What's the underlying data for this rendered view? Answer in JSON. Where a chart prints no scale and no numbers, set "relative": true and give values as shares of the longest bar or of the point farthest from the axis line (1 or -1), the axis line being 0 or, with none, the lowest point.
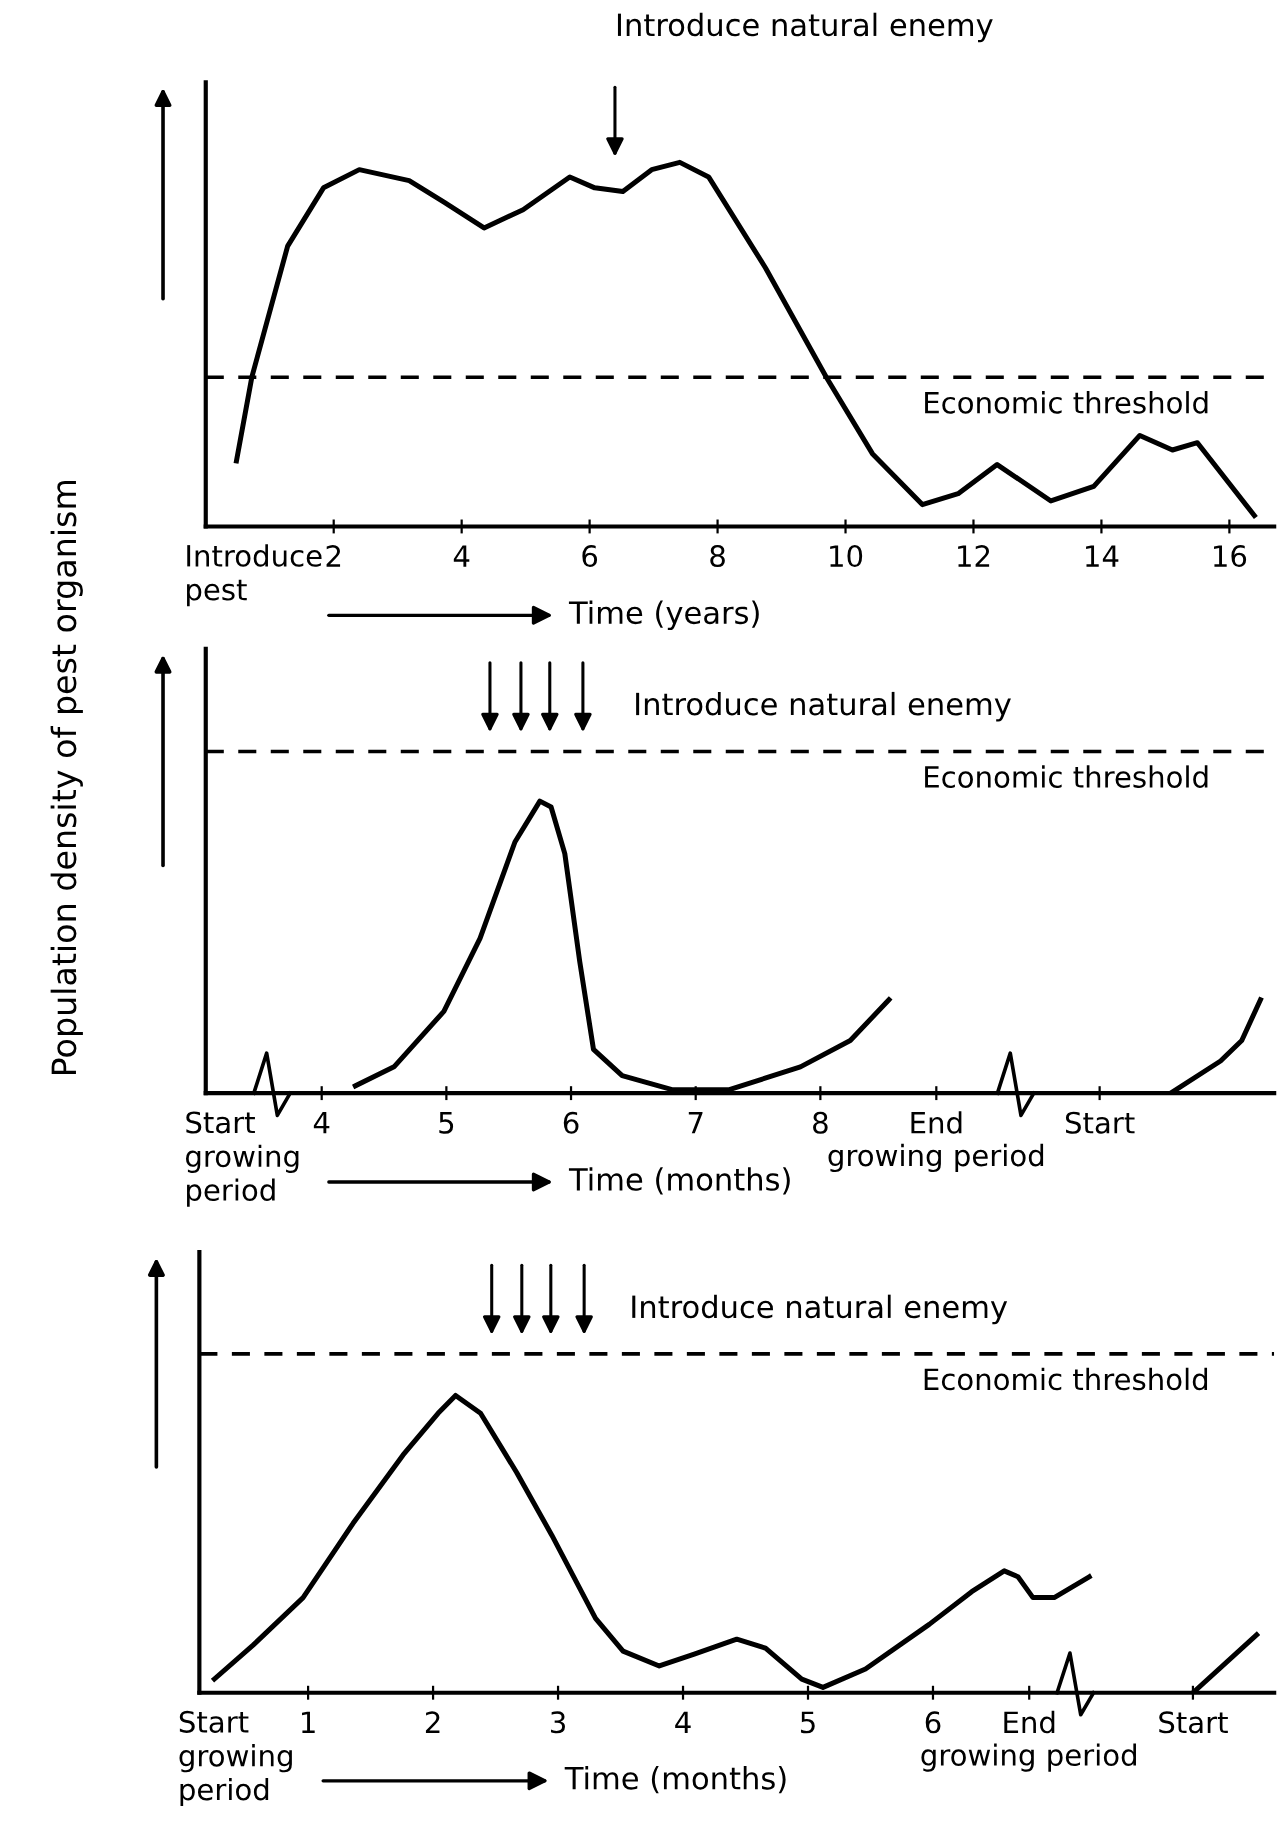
{
  "chart_data": [
    {
      "type": "line",
      "relative": true,
      "tick_labels": "x",
      "xlabel": "Time (years)",
      "xlim": [
        0,
        16.7
      ],
      "xticks": [
        2,
        4,
        6,
        8,
        10,
        12,
        14,
        16
      ],
      "series": [
        {
          "color": "#000000",
          "x": [
            0.48,
            0.72,
            1.28,
            1.84,
            2.4,
            3.18,
            3.73,
            4.35,
            4.96,
            5.69,
            6.08,
            6.52,
            6.97,
            7.41,
            7.86,
            8.75,
            9.7,
            10.42,
            11.2,
            11.76,
            12.37,
            13.21,
            13.88,
            14.6,
            15.11,
            15.5,
            16.39
          ],
          "values": [
            0.18,
            0.41,
            0.77,
            0.93,
            0.98,
            0.95,
            0.89,
            0.82,
            0.87,
            0.96,
            0.93,
            0.92,
            0.98,
            1.0,
            0.96,
            0.71,
            0.41,
            0.2,
            0.06,
            0.09,
            0.17,
            0.07,
            0.11,
            0.25,
            0.21,
            0.23,
            0.03
          ]
        }
      ],
      "ref_lines": [
        {
          "axis": "y",
          "value": 0.41,
          "label": "Economic threshold",
          "line_style": "dashed",
          "color": "#000000"
        }
      ],
      "annotations": [
        "Introduce\npest",
        "Introduce natural enemy"
      ]
    },
    {
      "type": "line",
      "relative": true,
      "tick_labels": "x",
      "xlabel": "Time (months)",
      "ylabel": "Population density of pest organism",
      "xlim": [
        3.07,
        11.64
      ],
      "xticks": [
        4,
        5,
        6,
        7,
        8,
        {
          "value": 8.93,
          "label": "End\ngrowing period"
        },
        {
          "value": 10.24,
          "label": "Start"
        }
      ],
      "series": [
        {
          "color": "#000000",
          "x": [
            4.27,
            4.58,
            4.98,
            5.27,
            5.55,
            5.75,
            5.84,
            5.95,
            6.07,
            6.18,
            6.41,
            6.81,
            7.27,
            7.84,
            8.24,
            8.55,
            9.7,
            10.81,
            11.21,
            11.38,
            11.53
          ],
          "values": [
            0.025,
            0.09,
            0.28,
            0.53,
            0.86,
            1.0,
            0.98,
            0.82,
            0.45,
            0.15,
            0.06,
            0.012,
            0.012,
            0.09,
            0.18,
            0.32,
            null,
            0,
            0.11,
            0.18,
            0.32
          ]
        }
      ],
      "ref_lines": [
        {
          "axis": "y",
          "value": 1.17,
          "label": "Economic threshold",
          "line_style": "dashed",
          "color": "#000000"
        }
      ],
      "annotations": [
        "Start\ngrowing\nperiod",
        "Introduce natural enemy"
      ]
    },
    {
      "type": "line",
      "relative": true,
      "tick_labels": "x",
      "xlabel": "Time (months)",
      "xlim": [
        0.13,
        8.73
      ],
      "xticks": [
        1,
        2,
        3,
        4,
        5,
        6,
        {
          "value": 6.77,
          "label": "End\ngrowing period"
        },
        {
          "value": 8.08,
          "label": "Start"
        }
      ],
      "series": [
        {
          "color": "#000000",
          "x": [
            0.25,
            0.56,
            0.96,
            1.36,
            1.76,
            2.04,
            2.18,
            2.38,
            2.67,
            2.95,
            3.3,
            3.52,
            3.81,
            4.09,
            4.43,
            4.66,
            4.95,
            5.12,
            5.46,
            5.97,
            6.31,
            6.57,
            6.68,
            6.8,
            6.97,
            7.25,
            7.6,
            8.08,
            8.59
          ],
          "values": [
            0.046,
            0.16,
            0.32,
            0.57,
            0.8,
            0.94,
            1.0,
            0.94,
            0.74,
            0.53,
            0.25,
            0.14,
            0.09,
            0.13,
            0.18,
            0.15,
            0.046,
            0.018,
            0.08,
            0.23,
            0.34,
            0.41,
            0.39,
            0.32,
            0.32,
            0.39,
            null,
            0,
            0.195
          ]
        }
      ],
      "ref_lines": [
        {
          "axis": "y",
          "value": 1.14,
          "label": "Economic threshold",
          "line_style": "dashed",
          "color": "#000000"
        }
      ],
      "annotations": [
        "Start\ngrowing\nperiod",
        "Introduce natural enemy"
      ]
    }
  ]
}
